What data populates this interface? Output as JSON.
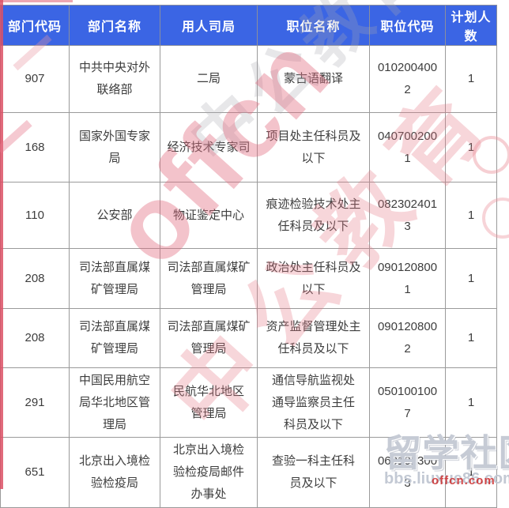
{
  "table": {
    "columns": [
      {
        "key": "dept_code",
        "label": "部门代码"
      },
      {
        "key": "dept_name",
        "label": "部门名称"
      },
      {
        "key": "bureau",
        "label": "用人司局"
      },
      {
        "key": "position_name",
        "label": "职位名称"
      },
      {
        "key": "position_code",
        "label": "职位代码"
      },
      {
        "key": "planned_count",
        "label": "计划人数"
      }
    ],
    "rows": [
      [
        "907",
        "中共中央对外\n联络部",
        "二局",
        "蒙古语翻译",
        "0102004002",
        "1"
      ],
      [
        "168",
        "国家外国专家\n局",
        "经济技术专家司",
        "项目处主任科员及\n以下",
        "0407002001",
        "1"
      ],
      [
        "110",
        "公安部",
        "物证鉴定中心",
        "痕迹检验技术处主\n任科员及以下",
        "0823024013",
        "1"
      ],
      [
        "208",
        "司法部直属煤\n矿管理局",
        "司法部直属煤矿\n管理局",
        "政治处主任科员及\n以下",
        "0901208001",
        "1"
      ],
      [
        "208",
        "司法部直属煤\n矿管理局",
        "司法部直属煤矿\n管理局",
        "资产监督管理处主\n任科员及以下",
        "0901208002",
        "1"
      ],
      [
        "291",
        "中国民用航空\n局华北地区管\n理局",
        "民航华北地区\n管理局",
        "通信导航监视处\n通导监察员主任\n科员及以下",
        "050100100\n7",
        "1"
      ],
      [
        "651",
        "北京出入境检\n验检疫局",
        "北京出入境检\n验检疫局邮件\n办事处",
        "查验一科主任科\n员及以下",
        "060101300\n3",
        "1"
      ]
    ]
  },
  "watermarks": {
    "offcn_logo": "offcn",
    "brand_gray": "中公教育",
    "brand_red": "中公教育",
    "community": "留学社区",
    "community_url": "bbs.liuxue86.com",
    "red_url": "offcn.com"
  },
  "colors": {
    "header_bg": "#3B65E4",
    "header_text": "#FFFFFF",
    "grid_border": "#9A9A9A",
    "cell_text": "#3D3D3D",
    "watermark_red": "#DC5065",
    "watermark_pink": "#E57A8C",
    "watermark_gray": "#ABADB3"
  }
}
